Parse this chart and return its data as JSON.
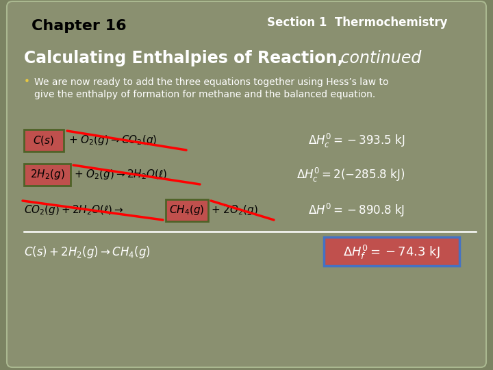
{
  "bg_color": "#7b8362",
  "bg_inner_color": "#8a9070",
  "title_chapter": "Chapter 16",
  "title_section": "Section 1  Thermochemistry",
  "bullet_text_line1": "We are now ready to add the three equations together using Hess’s law to",
  "bullet_text_line2": "give the enthalpy of formation for methane and the balanced equation.",
  "red_box_color": "#c0504d",
  "green_box_color": "#4f6228",
  "blue_box_color": "#4472c4",
  "text_dark": "#1a1a1a",
  "text_white": "#ffffff",
  "text_black": "#000000"
}
